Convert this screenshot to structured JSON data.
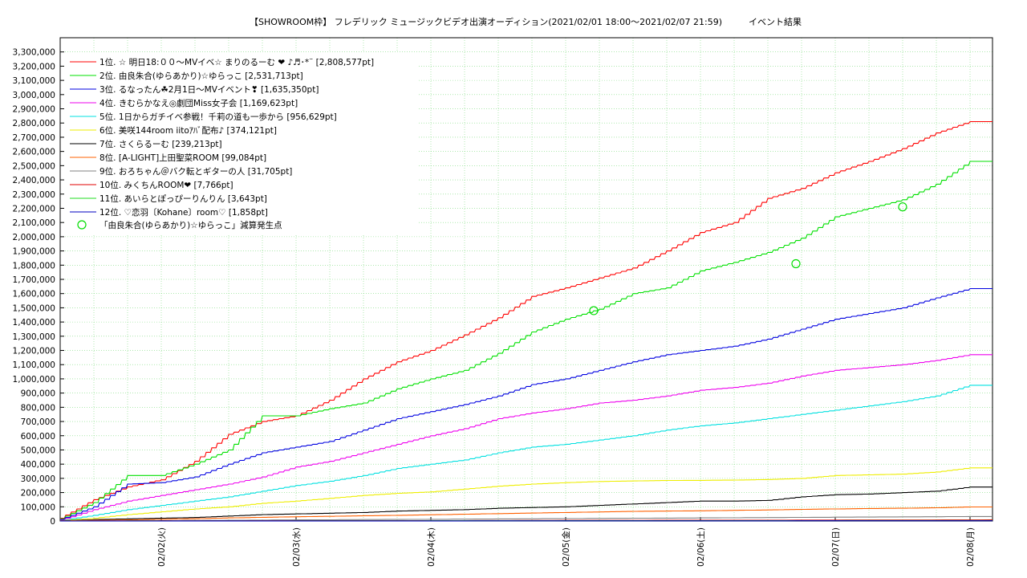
{
  "chart_data": {
    "type": "line",
    "title": "【SHOWROOM枠】 フレデリック ミュージックビデオ出演オーディション(2021/02/01 18:00～2021/02/07 21:59)　　　イベント結果",
    "xlabel": "",
    "ylabel": "",
    "ylim": [
      0,
      3400000
    ],
    "grid": true,
    "legend_position": "top-left",
    "x_ticks": [
      "02/02(火)",
      "02/03(水)",
      "02/04(木)",
      "02/05(金)",
      "02/06(土)",
      "02/07(日)",
      "02/08(月)"
    ],
    "y_ticks": [
      "0",
      "100,000",
      "200,000",
      "300,000",
      "400,000",
      "500,000",
      "600,000",
      "700,000",
      "800,000",
      "900,000",
      "1,000,000",
      "1,100,000",
      "1,200,000",
      "1,300,000",
      "1,400,000",
      "1,500,000",
      "1,600,000",
      "1,700,000",
      "1,800,000",
      "1,900,000",
      "2,000,000",
      "2,100,000",
      "2,200,000",
      "2,300,000",
      "2,400,000",
      "2,500,000",
      "2,600,000",
      "2,700,000",
      "2,800,000",
      "2,900,000",
      "3,000,000",
      "3,100,000",
      "3,200,000",
      "3,300,000"
    ],
    "x_range_hours": [
      -18,
      148
    ],
    "series": [
      {
        "name": "1位. ☆ 明日18:００〜MVイベ☆ まりのるーむ ❤︎ ♪♬･*¨ [2,808,577pt]",
        "color": "#ff0000",
        "x": [
          -18,
          -12,
          -6,
          0,
          6,
          12,
          18,
          24,
          30,
          36,
          42,
          48,
          54,
          60,
          66,
          72,
          78,
          84,
          90,
          96,
          102,
          108,
          114,
          120,
          126,
          132,
          138,
          144,
          148
        ],
        "y": [
          20000,
          150000,
          240000,
          290000,
          420000,
          610000,
          700000,
          740000,
          850000,
          1000000,
          1120000,
          1200000,
          1310000,
          1430000,
          1580000,
          1640000,
          1710000,
          1780000,
          1900000,
          2030000,
          2100000,
          2270000,
          2340000,
          2450000,
          2530000,
          2620000,
          2730000,
          2810000,
          2810000
        ]
      },
      {
        "name": "2位. 由良朱合(ゆらあかり)☆ゆらっこ [2,531,713pt]",
        "color": "#00e000",
        "x": [
          -18,
          -12,
          -6,
          0,
          6,
          12,
          18,
          24,
          30,
          36,
          42,
          48,
          54,
          60,
          66,
          72,
          78,
          84,
          90,
          96,
          102,
          108,
          114,
          120,
          126,
          132,
          138,
          144,
          148
        ],
        "y": [
          15000,
          130000,
          320000,
          320000,
          400000,
          500000,
          740000,
          740000,
          790000,
          830000,
          930000,
          1000000,
          1060000,
          1180000,
          1330000,
          1420000,
          1490000,
          1600000,
          1640000,
          1760000,
          1820000,
          1890000,
          1990000,
          2140000,
          2200000,
          2260000,
          2370000,
          2530000,
          2530000
        ]
      },
      {
        "name": "3位. るなったん☘2月1日〜MVイベント❣ [1,635,350pt]",
        "color": "#0000e0",
        "x": [
          -18,
          -12,
          -6,
          0,
          6,
          12,
          18,
          24,
          30,
          36,
          42,
          48,
          54,
          60,
          66,
          72,
          78,
          84,
          90,
          96,
          102,
          108,
          114,
          120,
          126,
          132,
          138,
          144,
          148
        ],
        "y": [
          10000,
          100000,
          260000,
          270000,
          310000,
          400000,
          480000,
          520000,
          560000,
          640000,
          720000,
          770000,
          820000,
          880000,
          960000,
          1000000,
          1060000,
          1120000,
          1170000,
          1200000,
          1230000,
          1280000,
          1350000,
          1420000,
          1460000,
          1500000,
          1570000,
          1635000,
          1635000
        ]
      },
      {
        "name": "4位. きむらかなえ◎劇団Miss女子会 [1,169,623pt]",
        "color": "#ee00ee",
        "x": [
          -18,
          -12,
          -6,
          0,
          6,
          12,
          18,
          24,
          30,
          36,
          42,
          48,
          54,
          60,
          66,
          72,
          78,
          84,
          90,
          96,
          102,
          108,
          114,
          120,
          126,
          132,
          138,
          144,
          148
        ],
        "y": [
          5000,
          80000,
          140000,
          180000,
          220000,
          260000,
          310000,
          380000,
          420000,
          480000,
          540000,
          600000,
          650000,
          720000,
          760000,
          790000,
          830000,
          850000,
          880000,
          920000,
          940000,
          970000,
          1020000,
          1060000,
          1080000,
          1100000,
          1130000,
          1170000,
          1170000
        ]
      },
      {
        "name": "5位. 1日からガチイベ参戦！千莉の道も一歩から [956,629pt]",
        "color": "#00e0e0",
        "x": [
          -18,
          -12,
          -6,
          0,
          6,
          12,
          18,
          24,
          30,
          36,
          42,
          48,
          54,
          60,
          66,
          72,
          78,
          84,
          90,
          96,
          102,
          108,
          114,
          120,
          126,
          132,
          138,
          144,
          148
        ],
        "y": [
          3000,
          40000,
          80000,
          110000,
          140000,
          170000,
          210000,
          250000,
          280000,
          320000,
          370000,
          400000,
          430000,
          480000,
          520000,
          540000,
          570000,
          600000,
          640000,
          670000,
          690000,
          720000,
          750000,
          780000,
          810000,
          840000,
          880000,
          955000,
          955000
        ]
      },
      {
        "name": "6位. 美咲144room iitoｱﾊﾞ配布♪ [374,121pt]",
        "color": "#eeee00",
        "x": [
          -18,
          -12,
          -6,
          0,
          6,
          12,
          18,
          24,
          30,
          36,
          42,
          48,
          54,
          60,
          66,
          72,
          78,
          84,
          90,
          96,
          102,
          108,
          114,
          120,
          126,
          132,
          138,
          144,
          148
        ],
        "y": [
          2000,
          20000,
          45000,
          65000,
          85000,
          100000,
          125000,
          140000,
          160000,
          180000,
          195000,
          205000,
          225000,
          245000,
          260000,
          270000,
          278000,
          282000,
          285000,
          286000,
          288000,
          292000,
          300000,
          320000,
          325000,
          330000,
          345000,
          374000,
          374000
        ]
      },
      {
        "name": "7位. さくらるーむ [239,213pt]",
        "color": "#000000",
        "x": [
          -18,
          -12,
          -6,
          0,
          6,
          12,
          18,
          24,
          30,
          36,
          42,
          48,
          54,
          60,
          66,
          72,
          78,
          84,
          90,
          96,
          102,
          108,
          114,
          120,
          126,
          132,
          138,
          144,
          148
        ],
        "y": [
          1000,
          10000,
          15000,
          20000,
          25000,
          35000,
          45000,
          50000,
          55000,
          60000,
          70000,
          75000,
          80000,
          90000,
          95000,
          100000,
          110000,
          120000,
          130000,
          140000,
          140000,
          145000,
          170000,
          185000,
          190000,
          200000,
          210000,
          239000,
          239000
        ]
      },
      {
        "name": "8位. [A-LIGHT]上田聖菜ROOM [99,084pt]",
        "color": "#ff6000",
        "x": [
          -18,
          -12,
          -6,
          0,
          6,
          12,
          18,
          24,
          30,
          36,
          42,
          48,
          54,
          60,
          66,
          72,
          78,
          84,
          90,
          96,
          102,
          108,
          114,
          120,
          126,
          132,
          138,
          144,
          148
        ],
        "y": [
          500,
          5000,
          8000,
          12000,
          16000,
          22000,
          26000,
          30000,
          33000,
          37000,
          40000,
          44000,
          48000,
          52000,
          56000,
          60000,
          64000,
          68000,
          70000,
          72000,
          75000,
          78000,
          82000,
          85000,
          88000,
          90000,
          93000,
          99000,
          99000
        ]
      },
      {
        "name": "9位. おろちゃん＠バク転とギターの人 [31,705pt]",
        "color": "#808080",
        "x": [
          -18,
          0,
          24,
          48,
          72,
          96,
          120,
          144,
          148
        ],
        "y": [
          0,
          3000,
          8000,
          12000,
          17000,
          22000,
          27000,
          31700,
          31700
        ]
      },
      {
        "name": "10位. みくちんROOM❤︎ [7,766pt]",
        "color": "#e00000",
        "x": [
          -18,
          0,
          48,
          96,
          148
        ],
        "y": [
          0,
          1000,
          3000,
          5500,
          7766
        ]
      },
      {
        "name": "11位. あいらとぽっぴーりんりん [3,643pt]",
        "color": "#22dd22",
        "x": [
          -18,
          0,
          48,
          96,
          148
        ],
        "y": [
          0,
          500,
          1500,
          2800,
          3643
        ]
      },
      {
        "name": "12位. ♡恋羽〔Kohane〕room♡ [1,858pt]",
        "color": "#0000c0",
        "x": [
          -18,
          0,
          48,
          96,
          148
        ],
        "y": [
          0,
          300,
          800,
          1300,
          1858
        ]
      }
    ],
    "markers": {
      "name": "「由良朱合(ゆらあかり)☆ゆらっこ」減算発生点",
      "color": "#00dd00",
      "points": [
        {
          "x": 77,
          "y": 1480000
        },
        {
          "x": 113,
          "y": 1810000
        },
        {
          "x": 132,
          "y": 2210000
        }
      ]
    }
  }
}
